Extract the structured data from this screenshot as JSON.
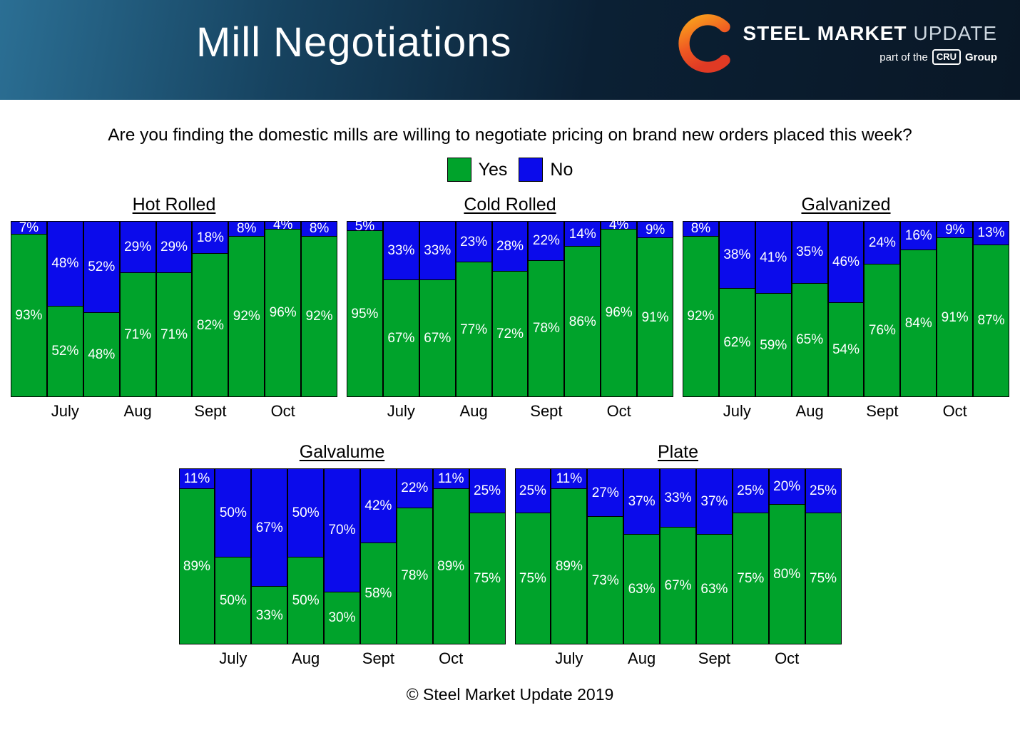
{
  "header": {
    "title": "Mill Negotiations",
    "logo": {
      "steel": "STEEL",
      "market": "MARKET",
      "update": "UPDATE",
      "tagline_prefix": "part of the",
      "tagline_badge": "CRU",
      "tagline_suffix": "Group"
    }
  },
  "question": "Are you finding the domestic mills are willing to negotiate pricing on brand new orders placed this week?",
  "legend": [
    {
      "label": "Yes",
      "color": "#00A32B"
    },
    {
      "label": "No",
      "color": "#0B0BEB"
    }
  ],
  "footer": "© Steel Market Update 2019",
  "chart_data": [
    {
      "type": "bar",
      "stacked": true,
      "title": "Hot Rolled",
      "categories": [
        "July",
        "Aug",
        "Sept",
        "Oct"
      ],
      "ylim": [
        0,
        100
      ],
      "series": [
        {
          "name": "Yes",
          "color": "#00A32B",
          "values": [
            93,
            52,
            48,
            71,
            71,
            82,
            92,
            96,
            92
          ]
        },
        {
          "name": "No",
          "color": "#0B0BEB",
          "values": [
            7,
            48,
            52,
            29,
            29,
            18,
            8,
            4,
            8
          ]
        }
      ]
    },
    {
      "type": "bar",
      "stacked": true,
      "title": "Cold Rolled",
      "categories": [
        "July",
        "Aug",
        "Sept",
        "Oct"
      ],
      "ylim": [
        0,
        100
      ],
      "series": [
        {
          "name": "Yes",
          "color": "#00A32B",
          "values": [
            95,
            67,
            67,
            77,
            72,
            78,
            86,
            96,
            91
          ]
        },
        {
          "name": "No",
          "color": "#0B0BEB",
          "values": [
            5,
            33,
            33,
            23,
            28,
            22,
            14,
            4,
            9
          ]
        }
      ]
    },
    {
      "type": "bar",
      "stacked": true,
      "title": "Galvanized",
      "categories": [
        "July",
        "Aug",
        "Sept",
        "Oct"
      ],
      "ylim": [
        0,
        100
      ],
      "series": [
        {
          "name": "Yes",
          "color": "#00A32B",
          "values": [
            92,
            62,
            59,
            65,
            54,
            76,
            84,
            91,
            87
          ]
        },
        {
          "name": "No",
          "color": "#0B0BEB",
          "values": [
            8,
            38,
            41,
            35,
            46,
            24,
            16,
            9,
            13
          ]
        }
      ]
    },
    {
      "type": "bar",
      "stacked": true,
      "title": "Galvalume",
      "categories": [
        "July",
        "Aug",
        "Sept",
        "Oct"
      ],
      "ylim": [
        0,
        100
      ],
      "series": [
        {
          "name": "Yes",
          "color": "#00A32B",
          "values": [
            89,
            50,
            33,
            50,
            30,
            58,
            78,
            89,
            75
          ]
        },
        {
          "name": "No",
          "color": "#0B0BEB",
          "values": [
            11,
            50,
            67,
            50,
            70,
            42,
            22,
            11,
            25
          ]
        }
      ]
    },
    {
      "type": "bar",
      "stacked": true,
      "title": "Plate",
      "categories": [
        "July",
        "Aug",
        "Sept",
        "Oct"
      ],
      "ylim": [
        0,
        100
      ],
      "series": [
        {
          "name": "Yes",
          "color": "#00A32B",
          "values": [
            75,
            89,
            73,
            63,
            67,
            63,
            75,
            80,
            75
          ]
        },
        {
          "name": "No",
          "color": "#0B0BEB",
          "values": [
            25,
            11,
            27,
            37,
            33,
            37,
            25,
            20,
            25
          ]
        }
      ]
    }
  ]
}
